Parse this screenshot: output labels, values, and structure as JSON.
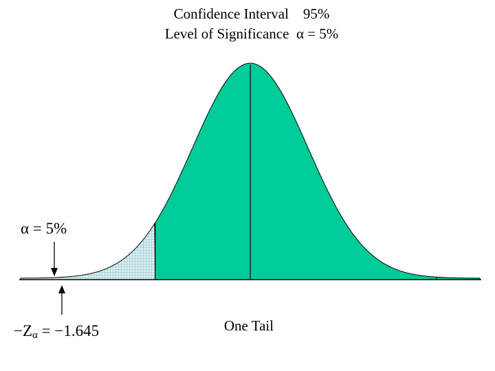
{
  "title": {
    "line1": "Confidence Interval    95%",
    "line2": "Level of Significance  α = 5%"
  },
  "alpha_label": "α = 5%",
  "z_label": {
    "prefix": "−Z",
    "subscript": "α",
    "suffix": " = −1.645"
  },
  "tail_label": "One Tail",
  "colors": {
    "curve_fill": "#00cc99",
    "tail_fill": "#d8f0ec",
    "tail_grid": "#7fa9d4",
    "outline": "#000000",
    "background": "#ffffff"
  },
  "distribution": {
    "type": "standard normal",
    "confidence_level": 0.95,
    "significance_level": 0.05,
    "critical_z": -1.645,
    "tail": "left",
    "shaded_tail_area": 0.05
  }
}
